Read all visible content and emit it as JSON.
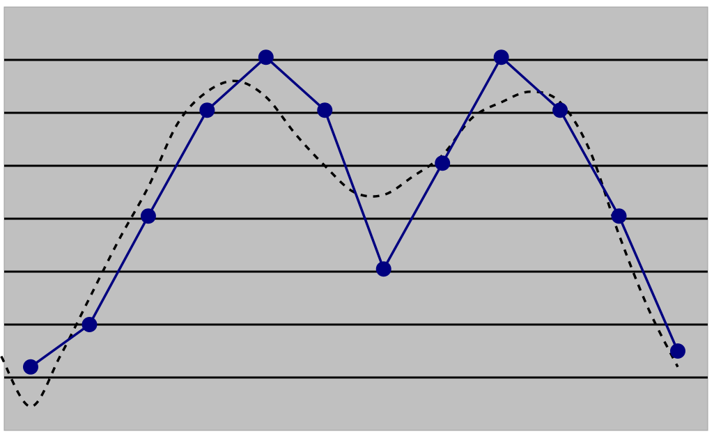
{
  "colors": {
    "background": "#c0c0c0",
    "gridline": "#000000",
    "series_line": "#000080",
    "marker": "#000080",
    "trend_line": "#000000"
  },
  "chart_data": {
    "type": "line",
    "title": "",
    "xlabel": "",
    "ylabel": "",
    "grid": true,
    "legend": "none",
    "x": [
      1,
      2,
      3,
      4,
      5,
      6,
      7,
      8,
      9,
      10,
      11,
      12
    ],
    "xlim": [
      0.5,
      12.5
    ],
    "ylim": [
      0,
      8
    ],
    "gridlines_y": [
      1,
      2,
      3,
      4,
      5,
      6,
      7
    ],
    "series": [
      {
        "style": "solid-with-markers",
        "values": [
          1.2,
          2.0,
          4.05,
          6.05,
          7.05,
          6.05,
          3.05,
          5.05,
          7.05,
          6.05,
          4.05,
          1.5
        ]
      },
      {
        "style": "dashed-smoothed",
        "points": [
          [
            0.5,
            1.4
          ],
          [
            1.0,
            0.45
          ],
          [
            1.5,
            1.4
          ],
          [
            2.0,
            2.5
          ],
          [
            2.5,
            3.6
          ],
          [
            3.0,
            4.6
          ],
          [
            3.5,
            5.8
          ],
          [
            4.0,
            6.4
          ],
          [
            4.5,
            6.6
          ],
          [
            5.0,
            6.3
          ],
          [
            5.5,
            5.6
          ],
          [
            6.0,
            5.0
          ],
          [
            6.5,
            4.5
          ],
          [
            7.0,
            4.45
          ],
          [
            7.5,
            4.8
          ],
          [
            8.0,
            5.2
          ],
          [
            8.5,
            5.9
          ],
          [
            9.0,
            6.2
          ],
          [
            9.5,
            6.4
          ],
          [
            10.0,
            6.2
          ],
          [
            10.5,
            5.3
          ],
          [
            11.0,
            3.7
          ],
          [
            11.5,
            2.3
          ],
          [
            12.0,
            1.2
          ]
        ]
      }
    ]
  }
}
